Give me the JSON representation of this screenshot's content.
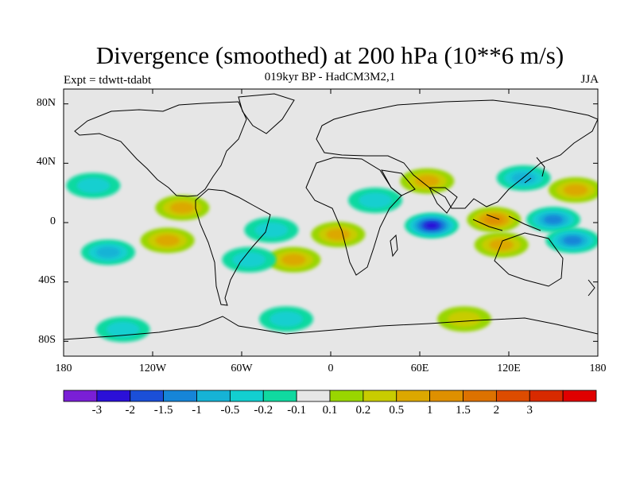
{
  "title": "Divergence (smoothed) at 200 hPa (10**6 m/s)",
  "subtitle": "019kyr BP - HadCM3M2,1",
  "expt": "Expt = tdwtt-tdabt",
  "season": "JJA",
  "lat_labels": [
    "80N",
    "40N",
    "0",
    "40S",
    "80S"
  ],
  "lon_labels": [
    "180",
    "120W",
    "60W",
    "0",
    "60E",
    "120E",
    "180"
  ],
  "colorbar": {
    "colors": [
      "#7a1fd6",
      "#2b10d8",
      "#1b4fd8",
      "#1685d8",
      "#16b3d6",
      "#12cfd0",
      "#10d9a0",
      "#e6e6e6",
      "#99d600",
      "#c8cc00",
      "#dca800",
      "#de9000",
      "#dd7200",
      "#dd4c00",
      "#d82a00",
      "#e00000"
    ],
    "labels": [
      "-3",
      "-2",
      "-1.5",
      "-1",
      "-0.5",
      "-0.2",
      "-0.1",
      "0.1",
      "0.2",
      "0.5",
      "1",
      "1.5",
      "2",
      "3"
    ]
  },
  "chart_data": {
    "type": "map",
    "field": "Divergence (smoothed) at 200 hPa",
    "units": "10**6 m/s",
    "levels": [
      -3,
      -2,
      -1.5,
      -1,
      -0.5,
      -0.2,
      -0.1,
      0.1,
      0.2,
      0.5,
      1,
      1.5,
      2,
      3
    ],
    "lon_range": [
      -180,
      180
    ],
    "lat_range": [
      -90,
      90
    ],
    "regions": [
      {
        "lon": 68,
        "lat": -2,
        "value": -2.5
      },
      {
        "lon": 150,
        "lat": 2,
        "value": -1.2
      },
      {
        "lon": 163,
        "lat": -12,
        "value": -1.0
      },
      {
        "lon": 110,
        "lat": 2,
        "value": 1.2
      },
      {
        "lon": 115,
        "lat": -15,
        "value": 0.8
      },
      {
        "lon": 165,
        "lat": 22,
        "value": 0.6
      },
      {
        "lon": 130,
        "lat": 30,
        "value": -0.6
      },
      {
        "lon": 65,
        "lat": 28,
        "value": 0.5
      },
      {
        "lon": 30,
        "lat": 15,
        "value": -0.4
      },
      {
        "lon": 5,
        "lat": -8,
        "value": 0.6
      },
      {
        "lon": -25,
        "lat": -25,
        "value": 0.5
      },
      {
        "lon": -40,
        "lat": -5,
        "value": -0.4
      },
      {
        "lon": -55,
        "lat": -25,
        "value": -0.4
      },
      {
        "lon": -100,
        "lat": 10,
        "value": 0.7
      },
      {
        "lon": -110,
        "lat": -12,
        "value": 0.6
      },
      {
        "lon": -150,
        "lat": -20,
        "value": -0.5
      },
      {
        "lon": -160,
        "lat": 25,
        "value": -0.4
      },
      {
        "lon": -30,
        "lat": -65,
        "value": -0.3
      },
      {
        "lon": 90,
        "lat": -65,
        "value": 0.4
      },
      {
        "lon": -140,
        "lat": -72,
        "value": -0.3
      }
    ]
  }
}
